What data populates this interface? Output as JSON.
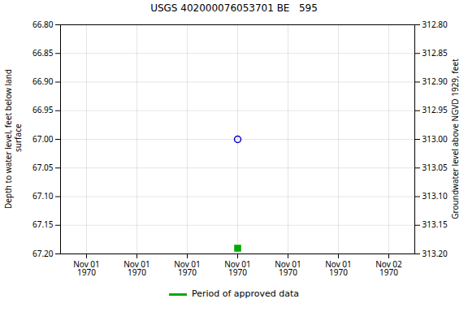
{
  "chart_data": {
    "type": "scatter",
    "title": "USGS 402000076053701 BE   595",
    "ylabel": "Depth to water level, feet below land\n surface",
    "y2label": "Groundwater level above NGVD 1929, feet",
    "categories": [
      "Nov 01\n1970",
      "Nov 01\n1970",
      "Nov 01\n1970",
      "Nov 01\n1970",
      "Nov 01\n1970",
      "Nov 01\n1970",
      "Nov 02\n1970"
    ],
    "ylim": [
      67.2,
      66.8
    ],
    "yticks": [
      {
        "value": 66.8,
        "label": "66.80"
      },
      {
        "value": 66.85,
        "label": "66.85"
      },
      {
        "value": 66.9,
        "label": "66.90"
      },
      {
        "value": 66.95,
        "label": "66.95"
      },
      {
        "value": 67.0,
        "label": "67.00"
      },
      {
        "value": 67.05,
        "label": "67.05"
      },
      {
        "value": 67.1,
        "label": "67.10"
      },
      {
        "value": 67.15,
        "label": "67.15"
      },
      {
        "value": 67.2,
        "label": "67.20"
      }
    ],
    "y2lim": [
      313.2,
      312.8
    ],
    "y2ticks": [
      {
        "value": 313.2,
        "label": "313.20"
      },
      {
        "value": 313.15,
        "label": "313.15"
      },
      {
        "value": 313.1,
        "label": "313.10"
      },
      {
        "value": 313.05,
        "label": "313.05"
      },
      {
        "value": 313.0,
        "label": "313.00"
      },
      {
        "value": 312.95,
        "label": "312.95"
      },
      {
        "value": 312.9,
        "label": "312.90"
      },
      {
        "value": 312.85,
        "label": "312.85"
      },
      {
        "value": 312.8,
        "label": "312.80"
      }
    ],
    "series": [
      {
        "values": [
          null,
          null,
          null,
          67.0,
          null,
          null,
          null
        ],
        "color": "#0000cc",
        "marker": "circle-open"
      },
      {
        "name": "Period of approved data",
        "values": [
          null,
          null,
          null,
          67.19,
          null,
          null,
          null
        ],
        "color": "#00aa00",
        "marker": "square"
      }
    ],
    "grid": true,
    "legend": "bottom"
  }
}
